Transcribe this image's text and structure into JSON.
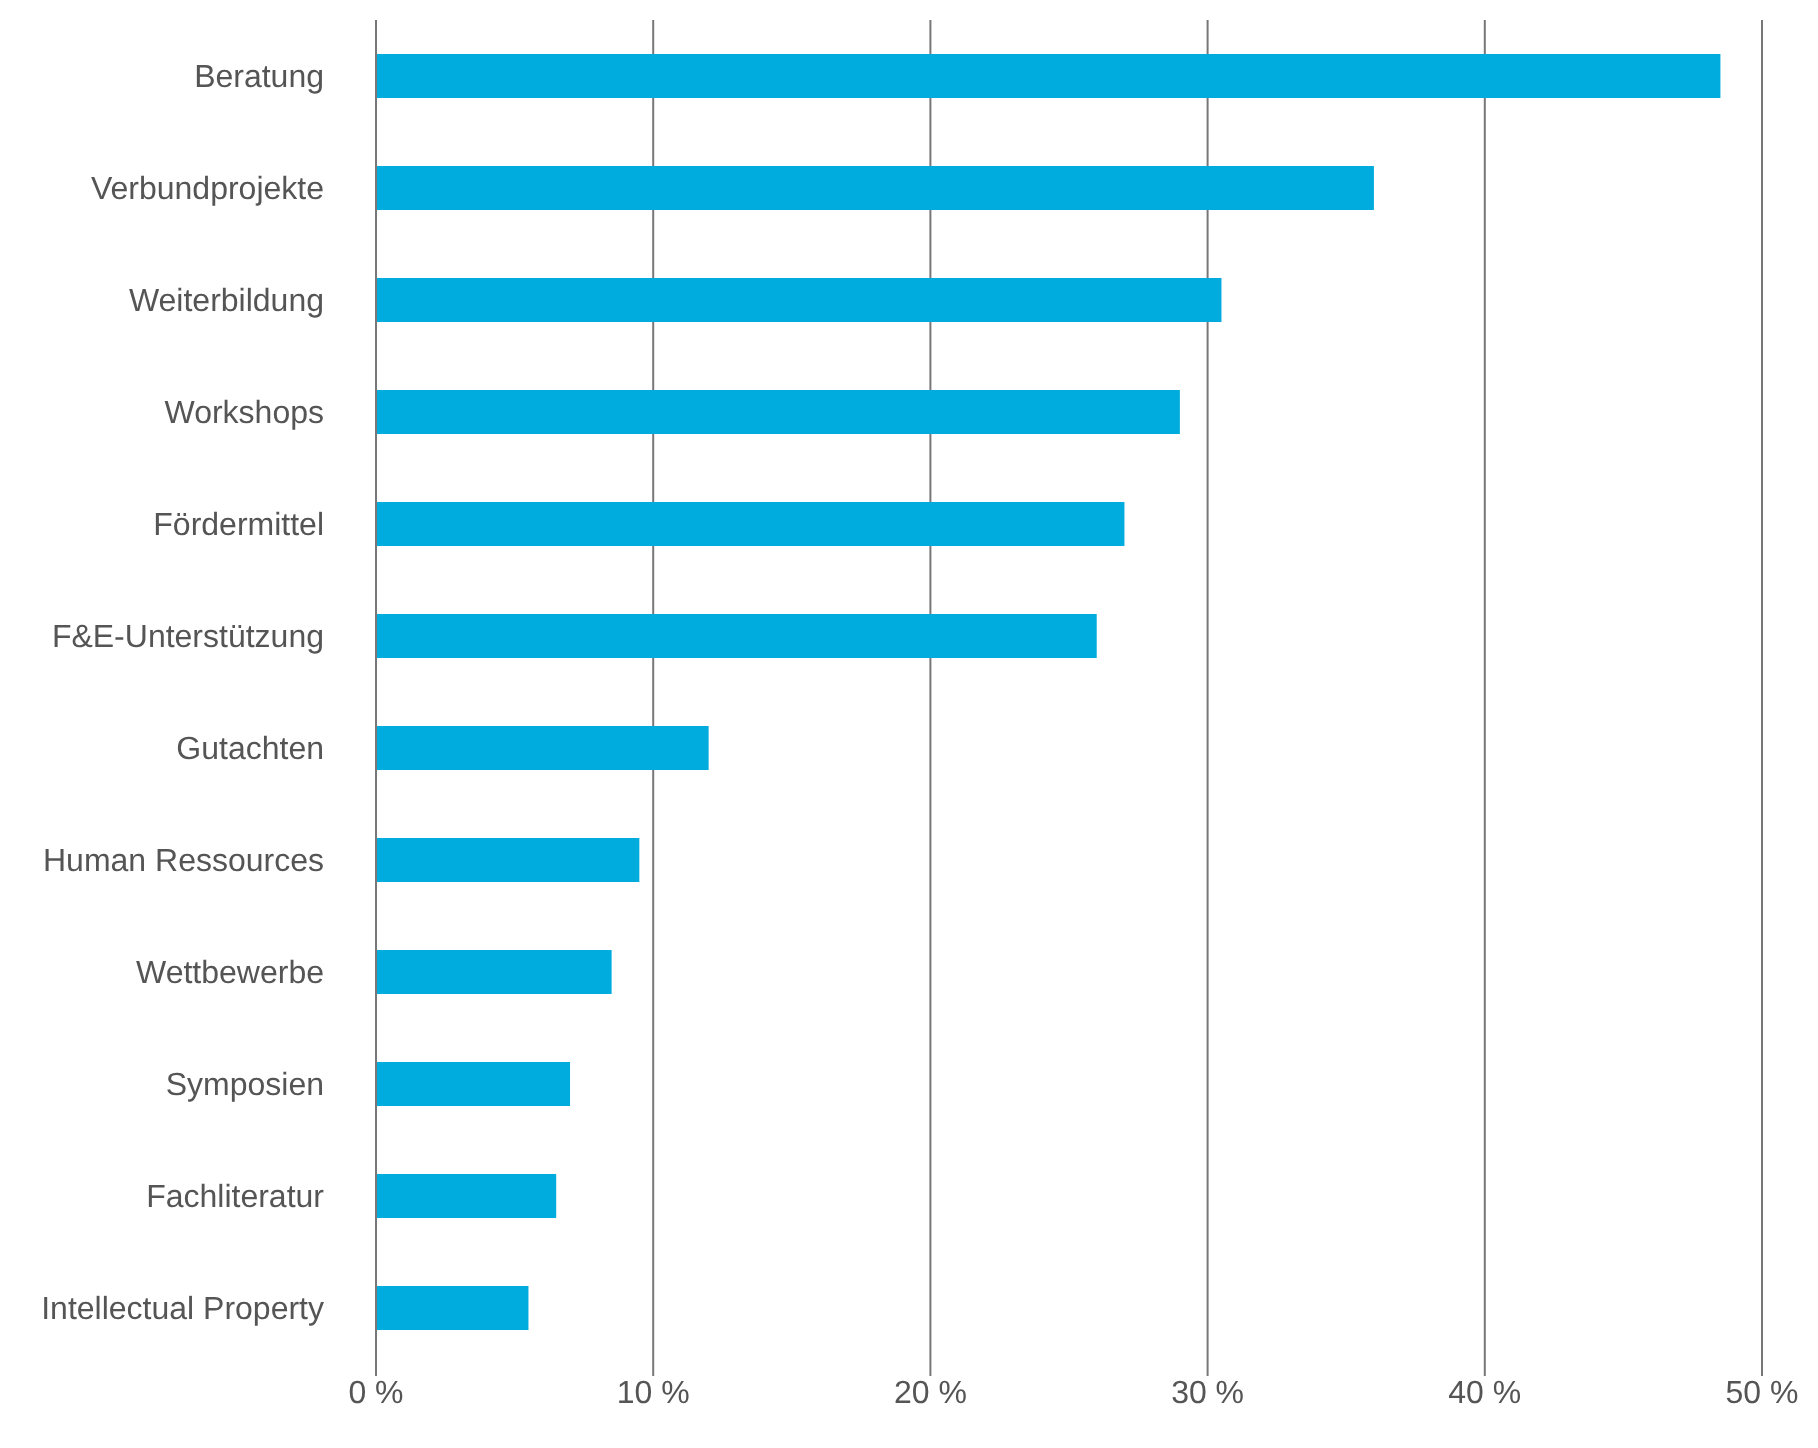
{
  "chart_data": {
    "type": "bar",
    "orientation": "horizontal",
    "categories": [
      "Beratung",
      "Verbundprojekte",
      "Weiterbildung",
      "Workshops",
      "Fördermittel",
      "F&E-Unterstützung",
      "Gutachten",
      "Human Ressources",
      "Wettbewerbe",
      "Symposien",
      "Fachliteratur",
      "Intellectual Property"
    ],
    "values": [
      48.5,
      36,
      30.5,
      29,
      27,
      26,
      12,
      9.5,
      8.5,
      7,
      6.5,
      5.5
    ],
    "color": "#00acde",
    "xlim": [
      0,
      50
    ],
    "xticks": [
      {
        "value": 0,
        "label": "0 %"
      },
      {
        "value": 10,
        "label": "10 %"
      },
      {
        "value": 20,
        "label": "20 %"
      },
      {
        "value": 30,
        "label": "30 %"
      },
      {
        "value": 40,
        "label": "40 %"
      },
      {
        "value": 50,
        "label": "50 %"
      }
    ],
    "grid": "x"
  }
}
